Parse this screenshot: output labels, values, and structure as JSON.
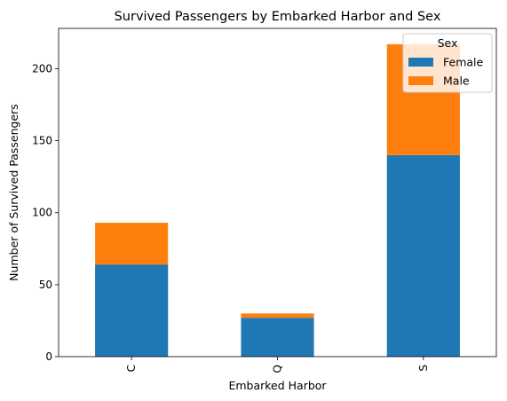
{
  "chart_data": {
    "type": "bar",
    "stacked": true,
    "title": "Survived Passengers by Embarked Harbor and Sex",
    "xlabel": "Embarked Harbor",
    "ylabel": "Number of Survived Passengers",
    "categories": [
      "C",
      "Q",
      "S"
    ],
    "series": [
      {
        "name": "Female",
        "values": [
          64,
          27,
          140
        ],
        "color": "#1f77b4"
      },
      {
        "name": "Male",
        "values": [
          29,
          3,
          77
        ],
        "color": "#ff7f0e"
      }
    ],
    "ylim": [
      0,
      228
    ],
    "yticks": [
      0,
      50,
      100,
      150,
      200
    ],
    "grid": false,
    "legend": {
      "title": "Sex",
      "position": "top-right"
    }
  }
}
